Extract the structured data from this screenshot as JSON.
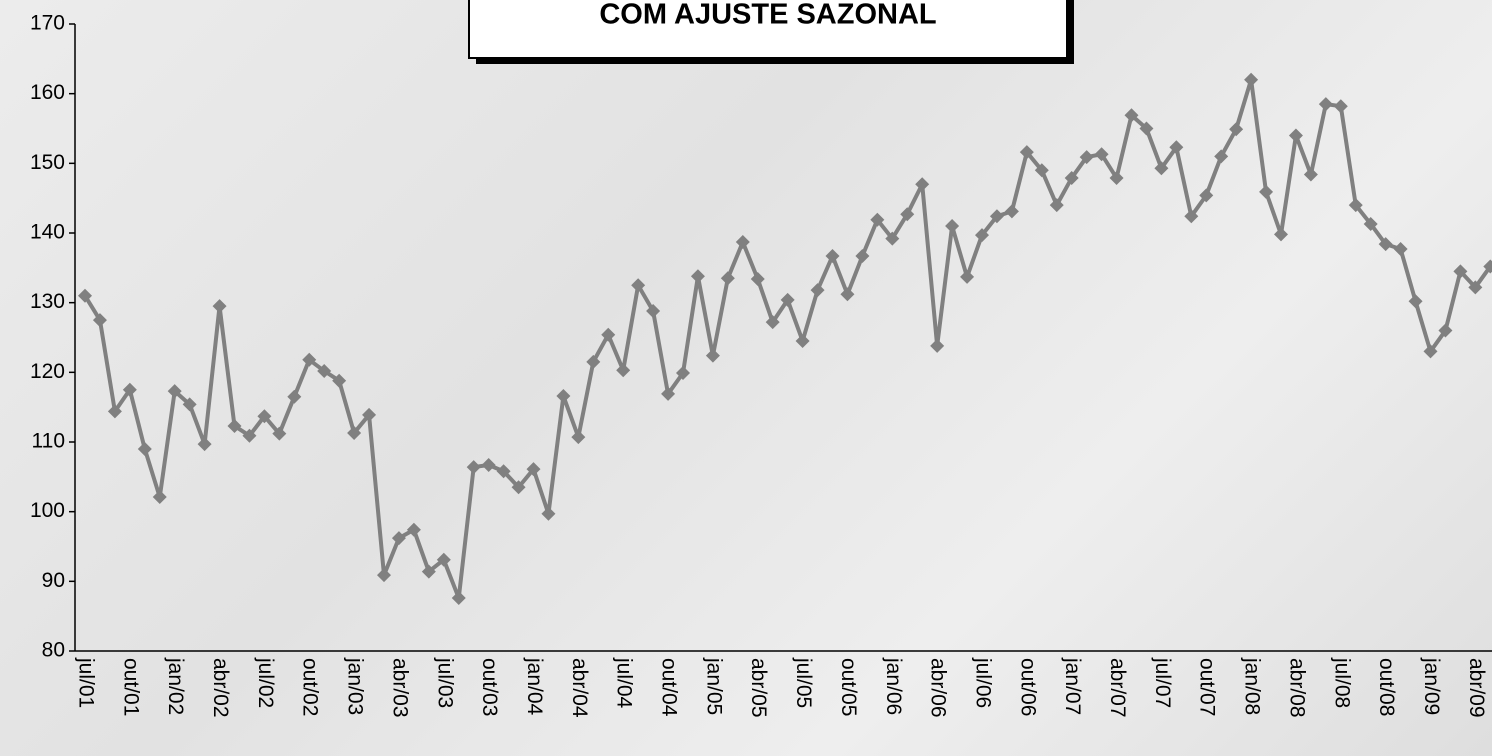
{
  "chart_data": {
    "type": "line",
    "title": "COM AJUSTE SAZONAL",
    "categories": [
      "jul/01",
      null,
      null,
      "out/01",
      null,
      null,
      "jan/02",
      null,
      null,
      "abr/02",
      null,
      null,
      "jul/02",
      null,
      null,
      "out/02",
      null,
      null,
      "jan/03",
      null,
      null,
      "abr/03",
      null,
      null,
      "jul/03",
      null,
      null,
      "out/03",
      null,
      null,
      "jan/04",
      null,
      null,
      "abr/04",
      null,
      null,
      "jul/04",
      null,
      null,
      "out/04",
      null,
      null,
      "jan/05",
      null,
      null,
      "abr/05",
      null,
      null,
      "jul/05",
      null,
      null,
      "out/05",
      null,
      null,
      "jan/06",
      null,
      null,
      "abr/06",
      null,
      null,
      "jul/06",
      null,
      null,
      "out/06",
      null,
      null,
      "jan/07",
      null,
      null,
      "abr/07",
      null,
      null,
      "jul/07",
      null,
      null,
      "out/07",
      null,
      null,
      "jan/08",
      null,
      null,
      "abr/08",
      null,
      null,
      "jul/08",
      null,
      null,
      "out/08",
      null,
      null,
      "jan/09",
      null,
      null,
      "abr/09",
      null
    ],
    "values": [
      131,
      127.5,
      114.4,
      117.5,
      109,
      102.1,
      117.3,
      115.4,
      109.7,
      129.5,
      112.3,
      110.9,
      113.7,
      111.2,
      116.5,
      121.8,
      120.2,
      118.8,
      111.3,
      113.9,
      90.9,
      96.2,
      97.4,
      91.4,
      93.1,
      87.6,
      106.4,
      106.7,
      105.8,
      103.5,
      106.1,
      99.7,
      116.6,
      110.7,
      121.5,
      125.4,
      120.3,
      132.5,
      128.8,
      116.9,
      119.9,
      133.8,
      122.4,
      133.5,
      138.7,
      133.4,
      127.2,
      130.4,
      124.5,
      131.8,
      136.7,
      131.2,
      136.7,
      141.9,
      139.2,
      142.7,
      147,
      123.8,
      141,
      133.7,
      139.7,
      142.4,
      143.1,
      151.6,
      149,
      144,
      147.9,
      150.9,
      151.3,
      147.9,
      156.9,
      155,
      149.3,
      152.3,
      142.4,
      145.4,
      151,
      154.9,
      162,
      145.9,
      139.8,
      154,
      148.4,
      158.5,
      158.2,
      144,
      141.3,
      138.4,
      137.7,
      130.2,
      123,
      126,
      134.5,
      132.2,
      135.2
    ],
    "color": "#808080",
    "ylim": [
      80,
      170
    ],
    "yticks": [
      80,
      90,
      100,
      110,
      120,
      130,
      140,
      150,
      160,
      170
    ]
  }
}
